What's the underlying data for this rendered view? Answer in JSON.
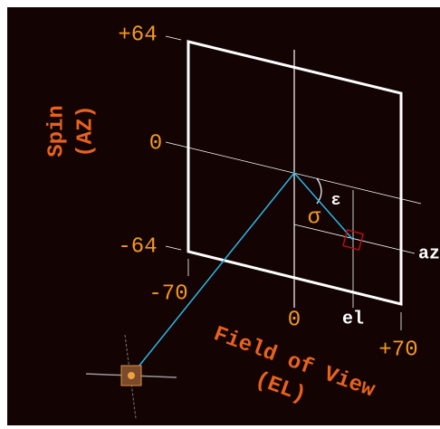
{
  "axis_labels": {
    "spin": [
      "Spin",
      "(AZ)"
    ],
    "fov": [
      "Field of View",
      "(EL)"
    ]
  },
  "spin_ticks": [
    "+64",
    "0",
    "-64"
  ],
  "fov_ticks": [
    "-70",
    "0",
    "+70"
  ],
  "angles": {
    "epsilon": "ε",
    "sigma": "σ"
  },
  "markers": {
    "el": "el",
    "az": "az"
  }
}
